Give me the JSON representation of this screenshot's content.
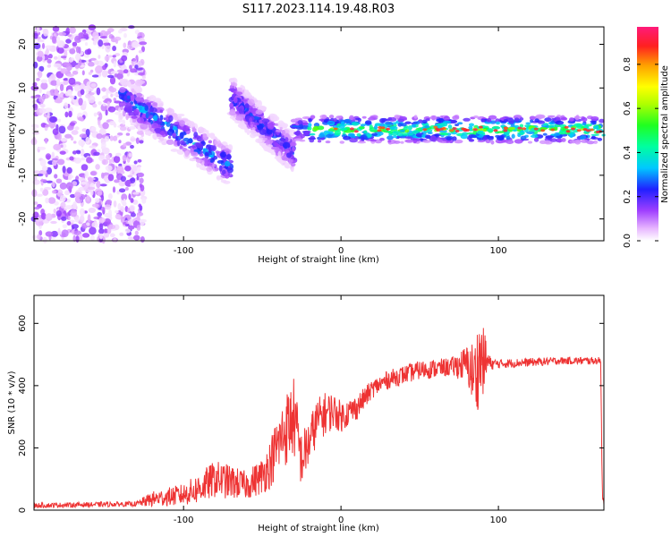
{
  "title": "S117.2023.114.19.48.R03",
  "chart_data": [
    {
      "type": "heatmap",
      "xlabel": "Height of straight line (km)",
      "ylabel": "Frequency (Hz)",
      "xlim": [
        -195,
        167
      ],
      "ylim": [
        -25,
        24
      ],
      "xticks": [
        -100,
        0,
        100
      ],
      "yticks": [
        -20,
        -10,
        0,
        10,
        20
      ],
      "colorbar": {
        "label": "Normalized spectral amplitude",
        "range": [
          0,
          0.97
        ],
        "ticks": [
          "0.0",
          "0.2",
          "0.4",
          "0.6",
          "0.8"
        ],
        "colormap": "rainbow-white-to-pink"
      },
      "features": [
        {
          "name": "noise",
          "x_range": [
            -195,
            -125
          ],
          "freq_range": [
            -25,
            24
          ],
          "amplitude": 0.12
        },
        {
          "name": "descending",
          "x_start": -140,
          "x_end": -70,
          "freq_start": 8,
          "freq_end": -8,
          "amplitude": 0.35
        },
        {
          "name": "descending",
          "x_start": -70,
          "x_end": -30,
          "freq_start": 8,
          "freq_end": -5,
          "amplitude": 0.28
        },
        {
          "name": "carrier",
          "x_range": [
            -30,
            167
          ],
          "freq": 0.5,
          "amplitude": 0.6
        }
      ]
    },
    {
      "type": "line",
      "xlabel": "Height of straight line (km)",
      "ylabel": "SNR (10 * v/v)",
      "xlim": [
        -195,
        167
      ],
      "ylim": [
        0,
        690
      ],
      "xticks": [
        -100,
        0,
        100
      ],
      "yticks": [
        0,
        200,
        400,
        600
      ],
      "color": "#ee3333",
      "series": [
        {
          "x": [
            -195,
            -130,
            -120,
            -100,
            -90,
            -80,
            -70,
            -60,
            -50,
            -45,
            -40,
            -35,
            -30,
            -25,
            -20,
            -15,
            -10,
            -5,
            0,
            10,
            20,
            30,
            50,
            70,
            80,
            85,
            88,
            92,
            95,
            100,
            140,
            165,
            166,
            167
          ],
          "y": [
            15,
            20,
            35,
            50,
            70,
            100,
            90,
            80,
            110,
            150,
            210,
            260,
            300,
            160,
            220,
            290,
            310,
            320,
            300,
            330,
            390,
            420,
            450,
            460,
            470,
            430,
            480,
            480,
            470,
            470,
            480,
            480,
            60,
            20
          ],
          "spread": [
            8,
            8,
            25,
            35,
            50,
            60,
            55,
            45,
            60,
            80,
            100,
            120,
            130,
            90,
            80,
            70,
            70,
            60,
            50,
            40,
            30,
            30,
            30,
            30,
            60,
            120,
            150,
            80,
            20,
            15,
            12,
            12,
            40,
            10
          ]
        }
      ]
    }
  ]
}
